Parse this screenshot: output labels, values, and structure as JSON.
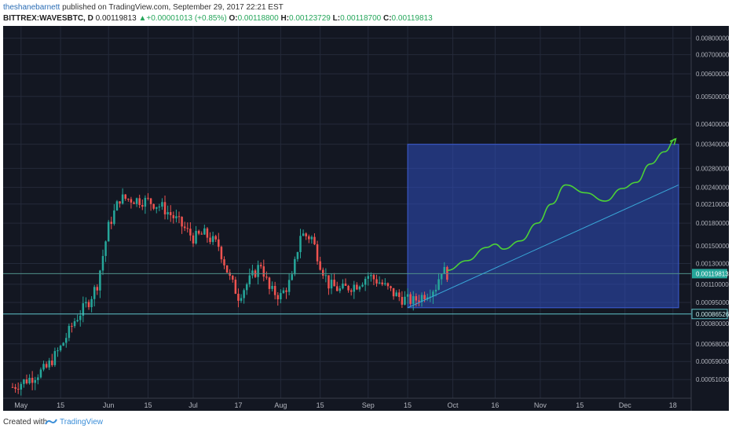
{
  "header": {
    "author": "theshanebarnett",
    "published": "published on TradingView.com, September 29, 2017 22:21 EST",
    "symbol": "BITTREX:WAVESBTC, D",
    "price": "0.00119813",
    "arrow": "▲",
    "change": "+0.00001013 (+0.85%)",
    "o_label": "O:",
    "o_value": "0.00118800",
    "h_label": "H:",
    "h_value": "0.00123729",
    "l_label": "L:",
    "l_value": "0.00118700",
    "c_label": "C:",
    "c_value": "0.00119813"
  },
  "footer": {
    "created": "Created with",
    "brand": "TradingView"
  },
  "colors": {
    "background": "#131722",
    "grid": "#242a3a",
    "up": "#26a69a",
    "down": "#ef5350",
    "box": "#2f4fbf",
    "projection": "#4cd137",
    "trendline": "#39a8d8",
    "support": "#5fc3c9"
  },
  "chart_data": {
    "type": "candlestick",
    "scale": "log",
    "ylim": [
      0.00045,
      0.0085
    ],
    "y_ticks": [
      "0.00800000",
      "0.00700000",
      "0.00600000",
      "0.00500000",
      "0.00400000",
      "0.00340000",
      "0.00280000",
      "0.00240000",
      "0.00210000",
      "0.00180000",
      "0.00150000",
      "0.00130000",
      "0.00110000",
      "0.00095000",
      "0.00080000",
      "0.00068000",
      "0.00059000",
      "0.00051000"
    ],
    "x_ticks": [
      "May",
      "15",
      "Jun",
      "15",
      "Jul",
      "17",
      "Aug",
      "15",
      "Sep",
      "15",
      "Oct",
      "16",
      "Nov",
      "15",
      "Dec",
      "18"
    ],
    "last_price_label": "0.00119813",
    "support_label": "0.00086526",
    "support_value": 0.00086526,
    "last_price_value": 0.00119813,
    "series_anchors": [
      [
        "2017-04-28",
        0.00048
      ],
      [
        "2017-05-05",
        0.00052
      ],
      [
        "2017-05-10",
        0.00056
      ],
      [
        "2017-05-15",
        0.00066
      ],
      [
        "2017-05-20",
        0.00082
      ],
      [
        "2017-05-25",
        0.00096
      ],
      [
        "2017-05-28",
        0.0011
      ],
      [
        "2017-06-01",
        0.00175
      ],
      [
        "2017-06-05",
        0.0022
      ],
      [
        "2017-06-10",
        0.00218
      ],
      [
        "2017-06-15",
        0.00215
      ],
      [
        "2017-06-20",
        0.00205
      ],
      [
        "2017-06-25",
        0.00185
      ],
      [
        "2017-07-01",
        0.0016
      ],
      [
        "2017-07-05",
        0.00165
      ],
      [
        "2017-07-10",
        0.0015
      ],
      [
        "2017-07-14",
        0.00115
      ],
      [
        "2017-07-17",
        0.001
      ],
      [
        "2017-07-20",
        0.0011
      ],
      [
        "2017-07-25",
        0.0013
      ],
      [
        "2017-07-28",
        0.00105
      ],
      [
        "2017-08-01",
        0.001
      ],
      [
        "2017-08-05",
        0.00115
      ],
      [
        "2017-08-08",
        0.00165
      ],
      [
        "2017-08-12",
        0.0016
      ],
      [
        "2017-08-15",
        0.0013
      ],
      [
        "2017-08-18",
        0.0011
      ],
      [
        "2017-08-22",
        0.00105
      ],
      [
        "2017-08-28",
        0.0011
      ],
      [
        "2017-09-01",
        0.00118
      ],
      [
        "2017-09-05",
        0.00112
      ],
      [
        "2017-09-10",
        0.00102
      ],
      [
        "2017-09-13",
        0.00098
      ],
      [
        "2017-09-17",
        0.00096
      ],
      [
        "2017-09-20",
        0.001
      ],
      [
        "2017-09-25",
        0.00108
      ],
      [
        "2017-09-27",
        0.00124
      ],
      [
        "2017-09-29",
        0.00119813
      ]
    ],
    "forecast_box": {
      "start": "2017-09-15",
      "end": "2017-12-20",
      "top": 0.0034,
      "bottom": 0.00091
    },
    "trendline": [
      [
        "2017-09-15",
        0.00091
      ],
      [
        "2017-12-20",
        0.00245
      ]
    ],
    "projection": [
      [
        "2017-09-29",
        0.00123
      ],
      [
        "2017-10-06",
        0.00133
      ],
      [
        "2017-10-13",
        0.00148
      ],
      [
        "2017-10-16",
        0.00152
      ],
      [
        "2017-10-19",
        0.00146
      ],
      [
        "2017-10-25",
        0.00156
      ],
      [
        "2017-10-31",
        0.0018
      ],
      [
        "2017-11-05",
        0.0021
      ],
      [
        "2017-11-10",
        0.00245
      ],
      [
        "2017-11-17",
        0.0023
      ],
      [
        "2017-11-24",
        0.00215
      ],
      [
        "2017-11-30",
        0.00238
      ],
      [
        "2017-12-05",
        0.0025
      ],
      [
        "2017-12-10",
        0.0029
      ],
      [
        "2017-12-15",
        0.0032
      ],
      [
        "2017-12-19",
        0.00355
      ]
    ]
  }
}
